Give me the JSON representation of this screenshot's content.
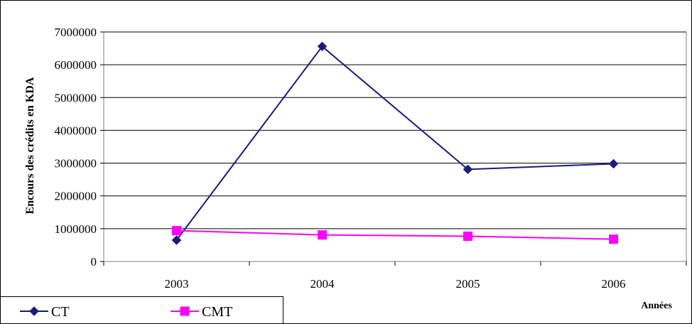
{
  "chart_data": {
    "type": "line",
    "categories": [
      "2003",
      "2004",
      "2005",
      "2006"
    ],
    "series": [
      {
        "name": "CT",
        "values": [
          650000,
          6560000,
          2810000,
          2980000
        ],
        "color": "#1a1a80",
        "marker": "diamond"
      },
      {
        "name": "CMT",
        "values": [
          940000,
          810000,
          770000,
          680000
        ],
        "color": "#ff00ff",
        "marker": "square"
      }
    ],
    "xlabel": "Années",
    "ylabel": "Encours des crédits en KDA",
    "ylim": [
      0,
      7000000
    ],
    "yticks": [
      "0",
      "1000000",
      "2000000",
      "3000000",
      "4000000",
      "5000000",
      "6000000",
      "7000000"
    ],
    "grid": "horizontal",
    "legend": "bottom-left"
  }
}
